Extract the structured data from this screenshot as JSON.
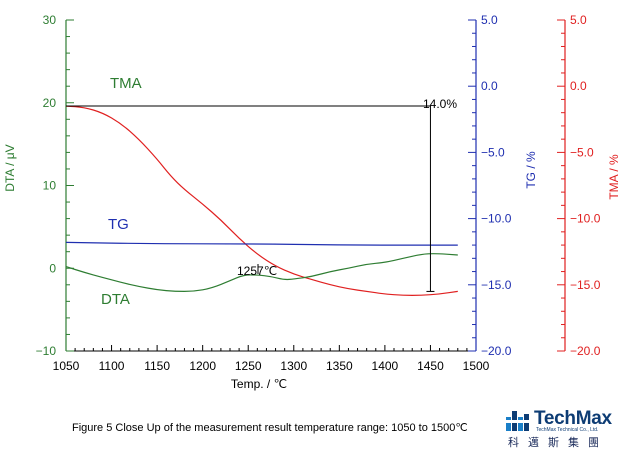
{
  "chart_data": {
    "type": "line",
    "xlabel": "Temp. / ℃",
    "xlim": [
      1050,
      1500
    ],
    "x_ticks": [
      "1050",
      "1100",
      "1150",
      "1200",
      "1250",
      "1300",
      "1350",
      "1400",
      "1450",
      "1500"
    ],
    "axes": {
      "dta": {
        "label": "DTA / μV",
        "range": [
          -10,
          30
        ],
        "ticks": [
          "30",
          "20",
          "10",
          "0",
          "−10"
        ],
        "color": "#2e7d32"
      },
      "tg": {
        "label": "TG / %",
        "range": [
          -20.0,
          5.0
        ],
        "ticks": [
          "5.0",
          "0.0",
          "−5.0",
          "−10.0",
          "−15.0",
          "−20.0"
        ],
        "color": "#1f2fb0"
      },
      "tma": {
        "label": "TMA / %",
        "range": [
          -20.0,
          5.0
        ],
        "ticks": [
          "5.0",
          "0.0",
          "−5.0",
          "−10.0",
          "−15.0",
          "−20.0"
        ],
        "color": "#e02020"
      }
    },
    "series": [
      {
        "name": "TMA",
        "axis": "tma",
        "color": "#e02020",
        "x": [
          1050,
          1070,
          1090,
          1110,
          1130,
          1150,
          1165,
          1180,
          1200,
          1220,
          1240,
          1260,
          1280,
          1300,
          1320,
          1340,
          1360,
          1380,
          1400,
          1420,
          1440,
          1460,
          1480
        ],
        "y": [
          -1.5,
          -1.6,
          -2.0,
          -2.8,
          -4.0,
          -5.5,
          -6.8,
          -7.8,
          -8.9,
          -10.1,
          -11.5,
          -12.7,
          -13.6,
          -14.2,
          -14.6,
          -15.0,
          -15.3,
          -15.5,
          -15.7,
          -15.8,
          -15.8,
          -15.7,
          -15.5
        ]
      },
      {
        "name": "TG",
        "axis": "tg",
        "color": "#1f2fb0",
        "x": [
          1050,
          1150,
          1250,
          1350,
          1450,
          1480
        ],
        "y": [
          -11.8,
          -11.9,
          -11.9,
          -12.0,
          -12.0,
          -12.0
        ]
      },
      {
        "name": "DTA",
        "axis": "dta",
        "color": "#2e7d32",
        "x": [
          1050,
          1070,
          1090,
          1110,
          1130,
          1150,
          1170,
          1190,
          1210,
          1230,
          1245,
          1260,
          1275,
          1290,
          1300,
          1320,
          1340,
          1360,
          1380,
          1400,
          1420,
          1440,
          1455,
          1480
        ],
        "y": [
          0.2,
          -0.5,
          -1.1,
          -1.7,
          -2.2,
          -2.6,
          -2.8,
          -2.8,
          -2.4,
          -1.5,
          -0.8,
          -0.8,
          -1.0,
          -1.4,
          -1.3,
          -1.0,
          -0.4,
          0.0,
          0.5,
          0.7,
          1.2,
          1.7,
          1.8,
          1.6
        ]
      }
    ],
    "annotations": [
      {
        "text": "TMA",
        "color": "#2e7d32"
      },
      {
        "text": "TG",
        "color": "#1f2fb0"
      },
      {
        "text": "DTA",
        "color": "#2e7d32"
      },
      {
        "text": "1257℃",
        "color": "#000000"
      },
      {
        "text": "14.0%",
        "color": "#000000"
      }
    ],
    "measurement": {
      "x": 1450,
      "tma_top": -1.5,
      "tma_bottom": -15.5,
      "value": "14.0%"
    },
    "grid": false,
    "legend": "inline labels"
  },
  "caption": "Figure 5 Close Up of the measurement result temperature range: 1050 to 1500℃",
  "logo": {
    "name": "TechMax",
    "subtitle": "TechMax Technical Co., Ltd.",
    "chinese": "科邁斯集團",
    "color": "#0d3c74"
  }
}
